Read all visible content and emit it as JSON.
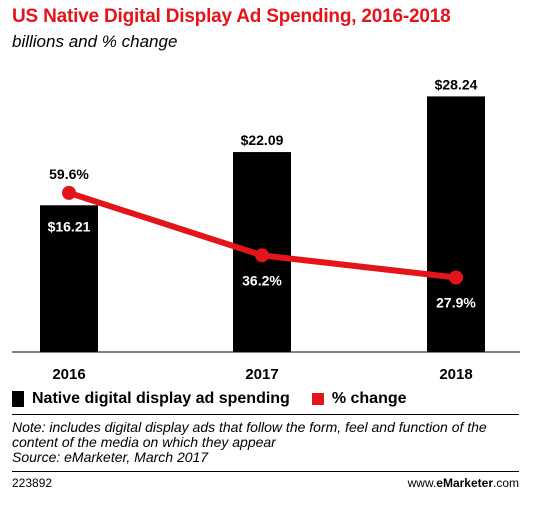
{
  "header": {
    "title": "US Native Digital Display Ad Spending, 2016-2018",
    "subtitle": "billions and % change"
  },
  "chart_data": {
    "type": "bar",
    "categories": [
      "2016",
      "2017",
      "2018"
    ],
    "series": [
      {
        "name": "Native digital display ad spending",
        "type": "bar",
        "values": [
          16.21,
          22.09,
          28.24
        ],
        "labels": [
          "$16.21",
          "$22.09",
          "$28.24"
        ],
        "color": "#000000"
      },
      {
        "name": "% change",
        "type": "line",
        "values": [
          59.6,
          36.2,
          27.9
        ],
        "labels": [
          "59.6%",
          "36.2%",
          "27.9%"
        ],
        "color": "#e4141b"
      }
    ],
    "ylim_bars": [
      0,
      29.5
    ],
    "ylim_line": [
      0,
      100
    ],
    "grid": false,
    "legend_position": "bottom-left"
  },
  "legend": {
    "bar_label": "Native digital display ad spending",
    "line_label": "% change"
  },
  "note": "Note: includes digital display ads that follow the form, feel and function of the content of the media on which they appear",
  "source": "Source: eMarketer, March 2017",
  "footer": {
    "id": "223892",
    "brand_prefix": "www.",
    "brand_bold": "eMarketer",
    "brand_suffix": ".com"
  }
}
